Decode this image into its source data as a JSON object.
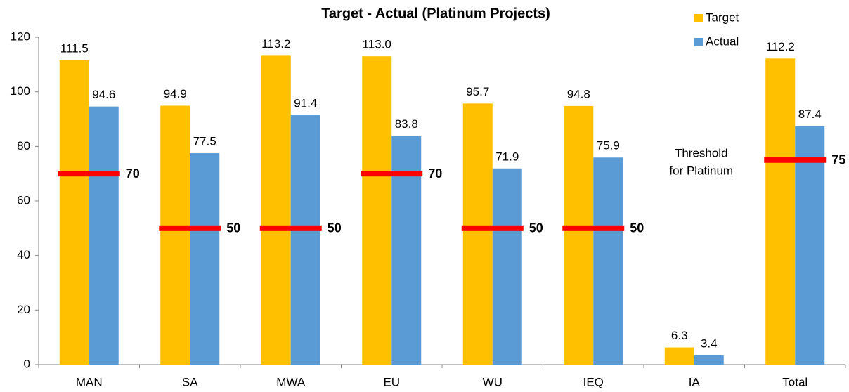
{
  "chart_data": {
    "type": "bar",
    "title": "Target - Actual (Platinum Projects)",
    "categories": [
      "MAN",
      "SA",
      "MWA",
      "EU",
      "WU",
      "IEQ",
      "IA",
      "Total"
    ],
    "series": [
      {
        "name": "Target",
        "color": "#ffc000",
        "values": [
          111.5,
          94.9,
          113.2,
          113.0,
          95.7,
          94.8,
          6.3,
          112.2
        ],
        "value_labels": [
          "111.5",
          "94.9",
          "113.2",
          "113.0",
          "95.7",
          "94.8",
          "6.3",
          "112.2"
        ]
      },
      {
        "name": "Actual",
        "color": "#5b9bd5",
        "values": [
          94.6,
          77.5,
          91.4,
          83.8,
          71.9,
          75.9,
          3.4,
          87.4
        ]
      }
    ],
    "thresholds": {
      "color": "#ff0000",
      "values": [
        70,
        50,
        50,
        70,
        50,
        50,
        null,
        75
      ]
    },
    "annotation": [
      "Threshold",
      "for Platinum"
    ],
    "ylim": [
      0,
      120
    ],
    "yticks": [
      0,
      20,
      40,
      60,
      80,
      100,
      120
    ],
    "grid": false,
    "legend": "top-right"
  }
}
